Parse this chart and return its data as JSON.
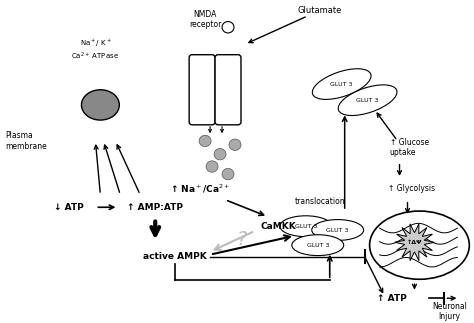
{
  "bg_color": "#ffffff",
  "figsize": [
    4.74,
    3.23
  ],
  "dpi": 100,
  "xlim": [
    0,
    474
  ],
  "ylim": [
    0,
    323
  ]
}
